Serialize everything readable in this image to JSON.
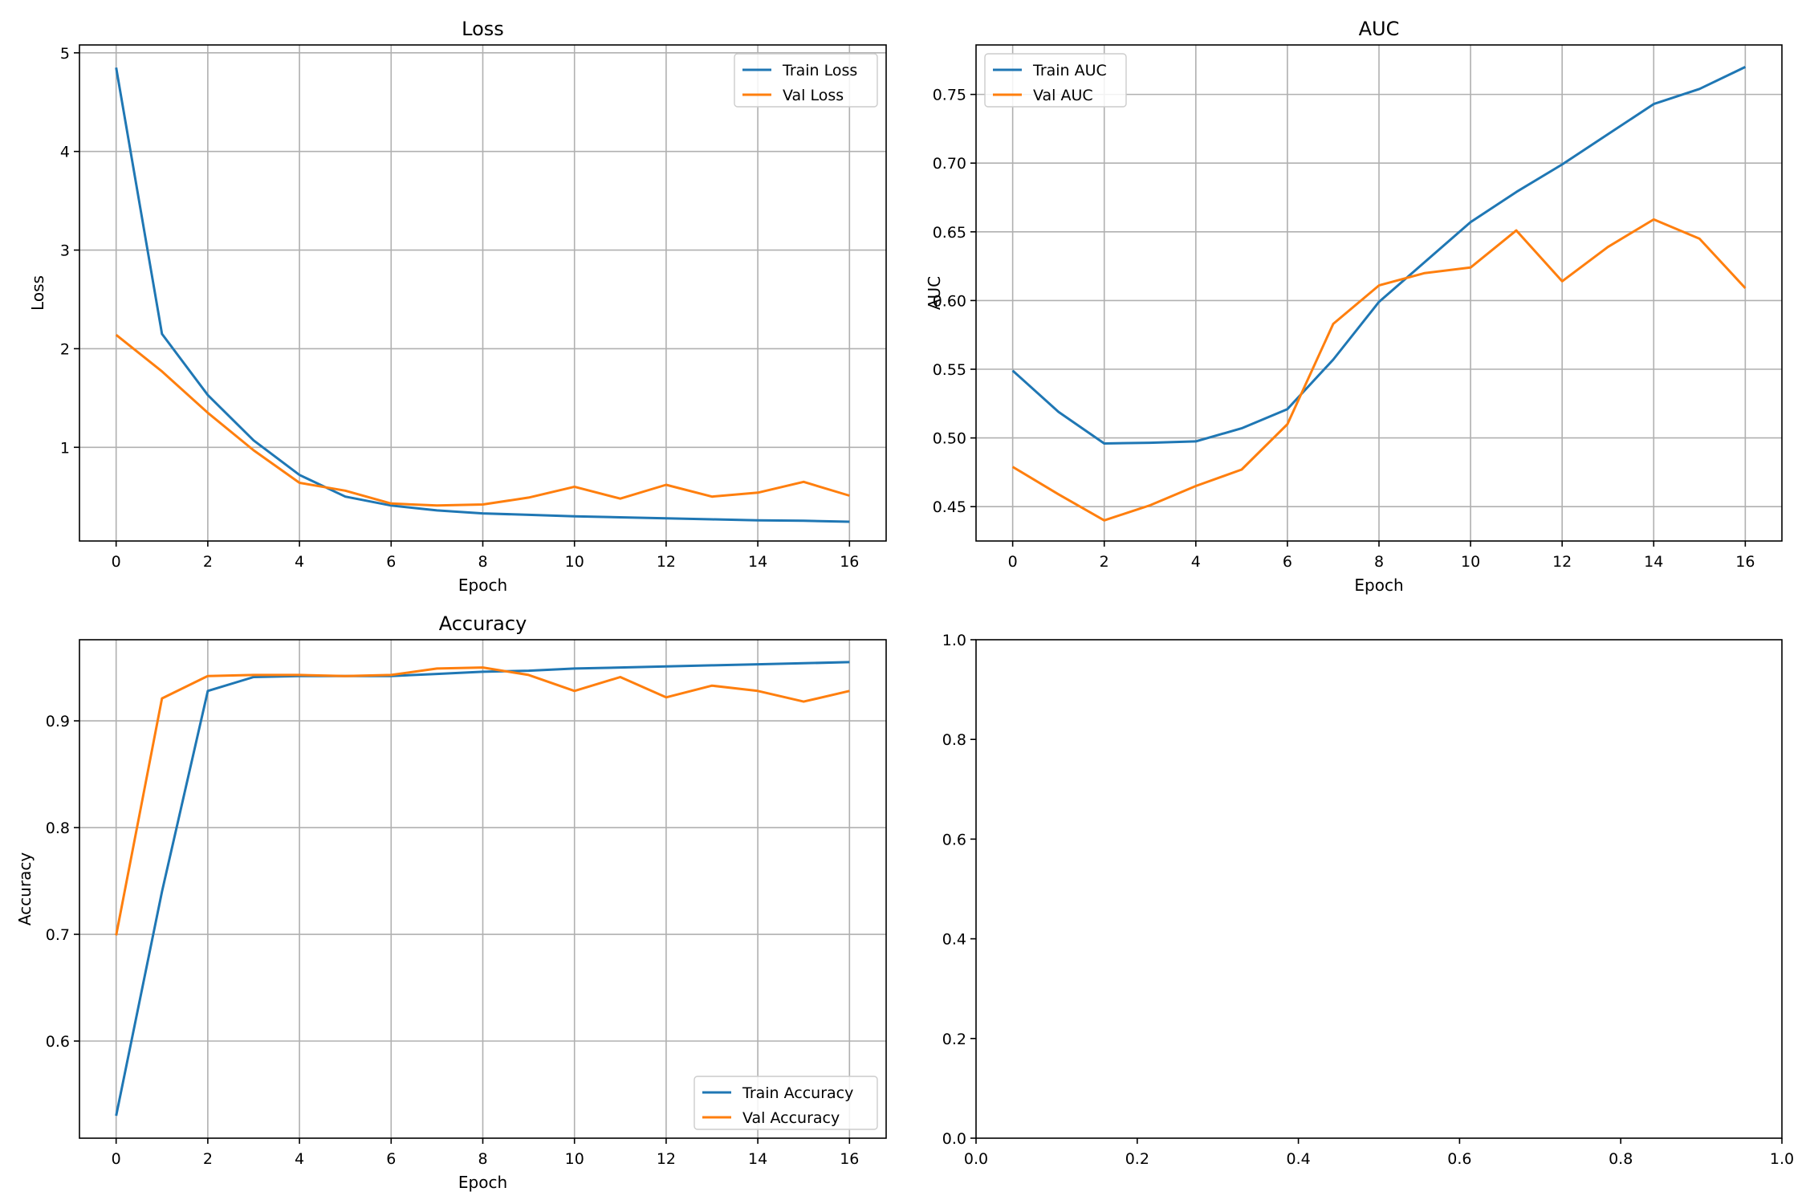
{
  "colors": {
    "train": "#1f77b4",
    "val": "#ff7f0e",
    "grid": "#b0b0b0"
  },
  "chart_data": [
    {
      "id": "loss",
      "type": "line",
      "title": "Loss",
      "xlabel": "Epoch",
      "ylabel": "Loss",
      "xlim": [
        -0.8,
        16.8
      ],
      "ylim": [
        0.05,
        5.08
      ],
      "xticks": [
        0,
        2,
        4,
        6,
        8,
        10,
        12,
        14,
        16
      ],
      "yticks": [
        1,
        2,
        3,
        4,
        5
      ],
      "tick_format": "int",
      "grid": true,
      "legend_position": "upper right",
      "x": [
        0,
        1,
        2,
        3,
        4,
        5,
        6,
        7,
        8,
        9,
        10,
        11,
        12,
        13,
        14,
        15,
        16
      ],
      "series": [
        {
          "name": "Train Loss",
          "color": "#1f77b4",
          "values": [
            4.85,
            2.15,
            1.53,
            1.07,
            0.72,
            0.5,
            0.41,
            0.36,
            0.33,
            0.315,
            0.3,
            0.29,
            0.28,
            0.27,
            0.26,
            0.255,
            0.245
          ]
        },
        {
          "name": "Val Loss",
          "color": "#ff7f0e",
          "values": [
            2.14,
            1.77,
            1.35,
            0.97,
            0.64,
            0.56,
            0.43,
            0.41,
            0.42,
            0.49,
            0.6,
            0.48,
            0.62,
            0.5,
            0.54,
            0.65,
            0.51
          ]
        }
      ]
    },
    {
      "id": "auc",
      "type": "line",
      "title": "AUC",
      "xlabel": "Epoch",
      "ylabel": "AUC",
      "xlim": [
        -0.8,
        16.8
      ],
      "ylim": [
        0.425,
        0.786
      ],
      "xticks": [
        0,
        2,
        4,
        6,
        8,
        10,
        12,
        14,
        16
      ],
      "yticks": [
        0.45,
        0.5,
        0.55,
        0.6,
        0.65,
        0.7,
        0.75
      ],
      "tick_format": "2dp",
      "grid": true,
      "legend_position": "upper left",
      "x": [
        0,
        1,
        2,
        3,
        4,
        5,
        6,
        7,
        8,
        9,
        10,
        11,
        12,
        13,
        14,
        15,
        16
      ],
      "series": [
        {
          "name": "Train AUC",
          "color": "#1f77b4",
          "values": [
            0.549,
            0.519,
            0.496,
            0.4965,
            0.4975,
            0.507,
            0.521,
            0.557,
            0.599,
            0.628,
            0.657,
            0.679,
            0.699,
            0.721,
            0.743,
            0.754,
            0.77
          ]
        },
        {
          "name": "Val AUC",
          "color": "#ff7f0e",
          "values": [
            0.479,
            0.459,
            0.44,
            0.451,
            0.465,
            0.477,
            0.51,
            0.583,
            0.611,
            0.62,
            0.624,
            0.651,
            0.614,
            0.639,
            0.659,
            0.645,
            0.609
          ]
        }
      ]
    },
    {
      "id": "accuracy",
      "type": "line",
      "title": "Accuracy",
      "xlabel": "Epoch",
      "ylabel": "Accuracy",
      "xlim": [
        -0.8,
        16.8
      ],
      "ylim": [
        0.509,
        0.976
      ],
      "xticks": [
        0,
        2,
        4,
        6,
        8,
        10,
        12,
        14,
        16
      ],
      "yticks": [
        0.6,
        0.7,
        0.8,
        0.9
      ],
      "tick_format": "1dp",
      "grid": true,
      "legend_position": "lower right",
      "x": [
        0,
        1,
        2,
        3,
        4,
        5,
        6,
        7,
        8,
        9,
        10,
        11,
        12,
        13,
        14,
        15,
        16
      ],
      "series": [
        {
          "name": "Train Accuracy",
          "color": "#1f77b4",
          "values": [
            0.53,
            0.74,
            0.928,
            0.941,
            0.942,
            0.942,
            0.942,
            0.944,
            0.946,
            0.947,
            0.949,
            0.95,
            0.951,
            0.952,
            0.953,
            0.954,
            0.955
          ]
        },
        {
          "name": "Val Accuracy",
          "color": "#ff7f0e",
          "values": [
            0.699,
            0.921,
            0.942,
            0.943,
            0.943,
            0.942,
            0.943,
            0.949,
            0.95,
            0.943,
            0.928,
            0.941,
            0.922,
            0.933,
            0.928,
            0.918,
            0.928
          ]
        }
      ]
    },
    {
      "id": "empty",
      "type": "line",
      "title": "",
      "xlabel": "",
      "ylabel": "",
      "xlim": [
        0,
        1
      ],
      "ylim": [
        0,
        1
      ],
      "xticks": [
        0,
        0.2,
        0.4,
        0.6,
        0.8,
        1.0
      ],
      "yticks": [
        0,
        0.2,
        0.4,
        0.6,
        0.8,
        1.0
      ],
      "tick_format": "1dp",
      "grid": false,
      "x": [],
      "series": []
    }
  ]
}
